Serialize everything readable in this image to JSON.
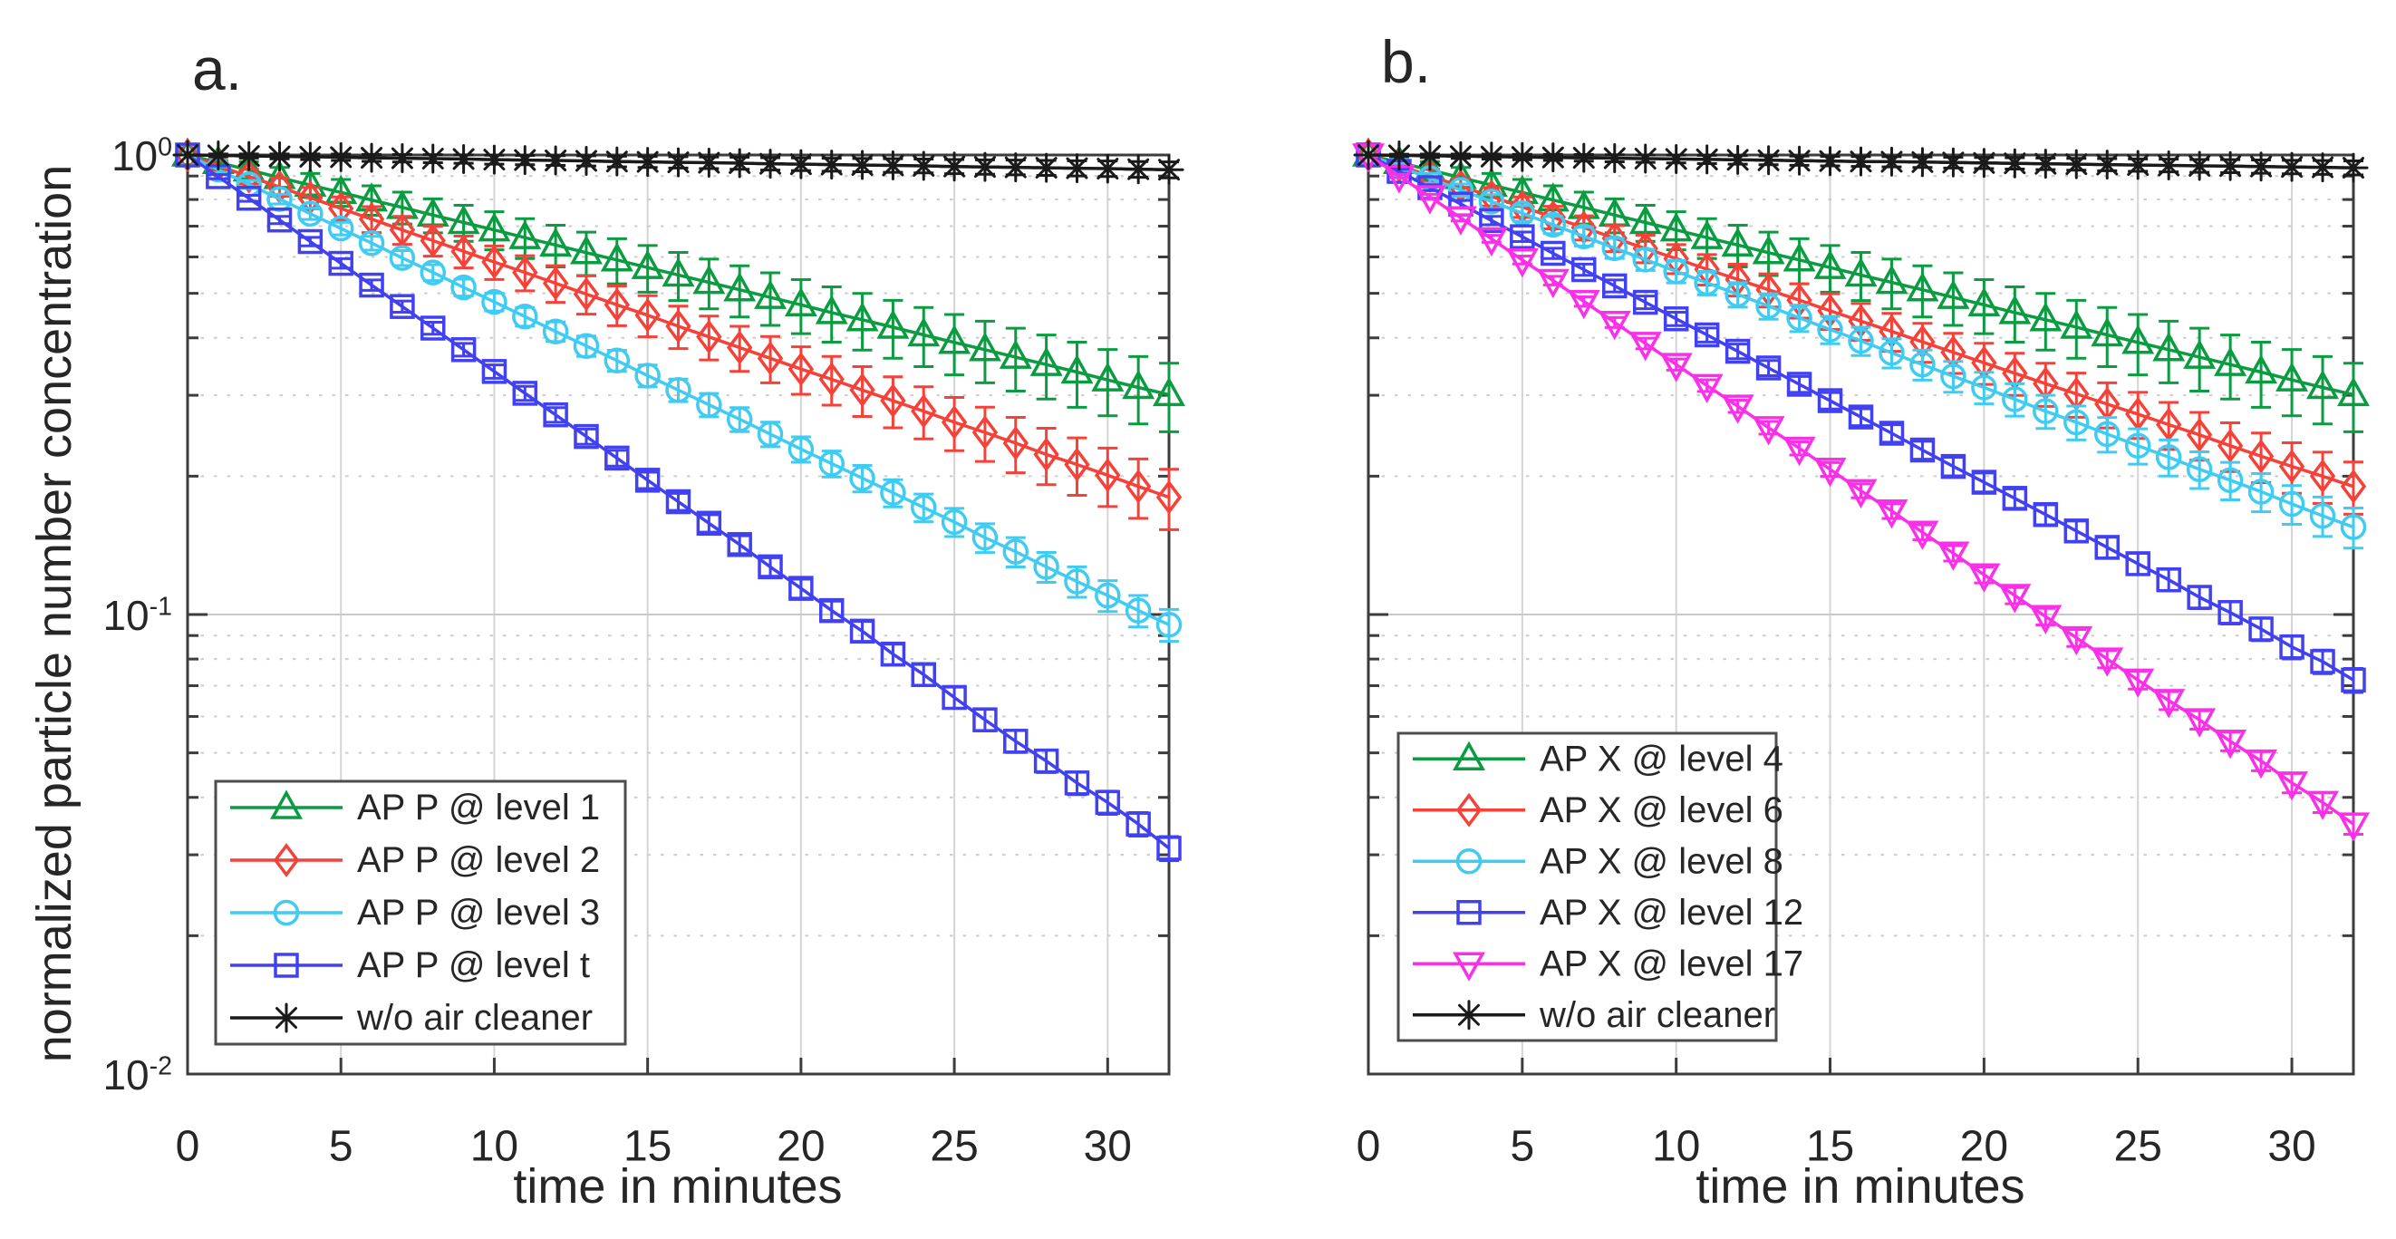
{
  "figure": {
    "background": "#ffffff",
    "frame_color": "#3c3c3c",
    "grid_major_color": "#c9c9c9",
    "grid_minor_color": "#cccccc",
    "grid_vertical_color": "#d4d4d4"
  },
  "chart_data": [
    {
      "type": "line",
      "panel_label": "a.",
      "xlabel": "time in minutes",
      "ylabel": "normalized particle number concentration",
      "x_axis": {
        "min": 0,
        "max": 32,
        "ticks": [
          0,
          5,
          10,
          15,
          20,
          25,
          30
        ]
      },
      "y_axis": {
        "scale": "log",
        "min": 0.01,
        "max": 1.0,
        "major_gridline": 0.1,
        "minor_gridlines": [
          0.9,
          0.8,
          0.7,
          0.6,
          0.5,
          0.4,
          0.3,
          0.2,
          0.09,
          0.08,
          0.07,
          0.06,
          0.05,
          0.04,
          0.03,
          0.02
        ]
      },
      "y_ticks": [
        {
          "base": "10",
          "exp": "0"
        },
        {
          "base": "10",
          "exp": "-1"
        },
        {
          "base": "10",
          "exp": "-2"
        }
      ],
      "grid": "on",
      "legend_position": "southwest",
      "x": {
        "start": 0,
        "step": 1,
        "count": 33,
        "unit": "minutes"
      },
      "series": [
        {
          "name": "AP P @ level 1",
          "marker": "triangle-up",
          "color": "#0B9B40",
          "err_frac": 0.17,
          "values": [
            1.0,
            0.963,
            0.928,
            0.893,
            0.86,
            0.829,
            0.798,
            0.769,
            0.74,
            0.713,
            0.687,
            0.661,
            0.637,
            0.613,
            0.591,
            0.569,
            0.548,
            0.528,
            0.509,
            0.49,
            0.472,
            0.454,
            0.438,
            0.422,
            0.406,
            0.391,
            0.377,
            0.363,
            0.35,
            0.337,
            0.324,
            0.312,
            0.301
          ]
        },
        {
          "name": "AP P @ level 2",
          "marker": "diamond",
          "color": "#F54138",
          "err_frac": 0.15,
          "values": [
            1.0,
            0.948,
            0.898,
            0.852,
            0.807,
            0.765,
            0.725,
            0.687,
            0.651,
            0.617,
            0.585,
            0.555,
            0.526,
            0.498,
            0.472,
            0.448,
            0.424,
            0.402,
            0.381,
            0.361,
            0.342,
            0.325,
            0.308,
            0.292,
            0.277,
            0.262,
            0.249,
            0.236,
            0.223,
            0.212,
            0.201,
            0.19,
            0.18
          ]
        },
        {
          "name": "AP P @ level 3",
          "marker": "circle",
          "color": "#3FCBF2",
          "err_frac": 0.08,
          "values": [
            1.0,
            0.929,
            0.863,
            0.802,
            0.745,
            0.692,
            0.643,
            0.597,
            0.555,
            0.515,
            0.479,
            0.445,
            0.413,
            0.384,
            0.357,
            0.331,
            0.308,
            0.286,
            0.266,
            0.247,
            0.229,
            0.213,
            0.198,
            0.184,
            0.171,
            0.159,
            0.147,
            0.137,
            0.127,
            0.118,
            0.11,
            0.102,
            0.095
          ]
        },
        {
          "name": "AP P @ level t",
          "marker": "square",
          "color": "#4141F0",
          "err_frac": 0.06,
          "values": [
            1.0,
            0.897,
            0.805,
            0.722,
            0.648,
            0.581,
            0.521,
            0.468,
            0.42,
            0.377,
            0.338,
            0.303,
            0.272,
            0.244,
            0.219,
            0.196,
            0.176,
            0.158,
            0.142,
            0.127,
            0.114,
            0.102,
            0.092,
            0.082,
            0.074,
            0.066,
            0.059,
            0.053,
            0.048,
            0.043,
            0.039,
            0.035,
            0.031
          ]
        },
        {
          "name": "w/o air cleaner",
          "marker": "asterisk",
          "color": "#1A1A1A",
          "err_frac": 0.04,
          "values": [
            1.0,
            0.998,
            0.995,
            0.993,
            0.991,
            0.989,
            0.986,
            0.984,
            0.982,
            0.98,
            0.977,
            0.975,
            0.973,
            0.971,
            0.968,
            0.966,
            0.964,
            0.962,
            0.96,
            0.957,
            0.955,
            0.953,
            0.951,
            0.949,
            0.947,
            0.944,
            0.942,
            0.94,
            0.938,
            0.936,
            0.934,
            0.931,
            0.929
          ]
        }
      ]
    },
    {
      "type": "line",
      "panel_label": "b.",
      "xlabel": "time in minutes",
      "ylabel": "",
      "x_axis": {
        "min": 0,
        "max": 32,
        "ticks": [
          0,
          5,
          10,
          15,
          20,
          25,
          30
        ]
      },
      "y_axis": {
        "scale": "log",
        "min": 0.01,
        "max": 1.0,
        "major_gridline": 0.1,
        "minor_gridlines": [
          0.9,
          0.8,
          0.7,
          0.6,
          0.5,
          0.4,
          0.3,
          0.2,
          0.09,
          0.08,
          0.07,
          0.06,
          0.05,
          0.04,
          0.03,
          0.02
        ]
      },
      "y_ticks": [],
      "grid": "on",
      "legend_position": "southwest",
      "x": {
        "start": 0,
        "step": 1,
        "count": 33,
        "unit": "minutes"
      },
      "series": [
        {
          "name": "AP X @ level 4",
          "marker": "triangle-up",
          "color": "#0B9B40",
          "err_frac": 0.17,
          "values": [
            1.0,
            0.963,
            0.928,
            0.893,
            0.86,
            0.829,
            0.798,
            0.769,
            0.74,
            0.713,
            0.687,
            0.661,
            0.637,
            0.613,
            0.591,
            0.569,
            0.548,
            0.528,
            0.509,
            0.49,
            0.472,
            0.454,
            0.438,
            0.422,
            0.406,
            0.391,
            0.377,
            0.363,
            0.35,
            0.337,
            0.324,
            0.312,
            0.301
          ]
        },
        {
          "name": "AP X @ level 6",
          "marker": "diamond",
          "color": "#F54138",
          "err_frac": 0.13,
          "values": [
            1.0,
            0.949,
            0.901,
            0.855,
            0.812,
            0.771,
            0.732,
            0.695,
            0.659,
            0.626,
            0.595,
            0.564,
            0.536,
            0.509,
            0.483,
            0.458,
            0.435,
            0.413,
            0.392,
            0.372,
            0.353,
            0.335,
            0.318,
            0.302,
            0.287,
            0.273,
            0.259,
            0.246,
            0.233,
            0.221,
            0.21,
            0.2,
            0.19
          ]
        },
        {
          "name": "AP X @ level 8",
          "marker": "circle",
          "color": "#3FCBF2",
          "err_frac": 0.1,
          "values": [
            1.0,
            0.943,
            0.89,
            0.839,
            0.792,
            0.747,
            0.705,
            0.665,
            0.627,
            0.592,
            0.558,
            0.527,
            0.497,
            0.469,
            0.442,
            0.417,
            0.394,
            0.371,
            0.35,
            0.33,
            0.312,
            0.294,
            0.277,
            0.262,
            0.247,
            0.233,
            0.22,
            0.207,
            0.196,
            0.185,
            0.174,
            0.164,
            0.155
          ]
        },
        {
          "name": "AP X @ level 12",
          "marker": "square",
          "color": "#4141F0",
          "err_frac": 0.06,
          "values": [
            1.0,
            0.921,
            0.849,
            0.782,
            0.72,
            0.664,
            0.611,
            0.563,
            0.519,
            0.478,
            0.44,
            0.406,
            0.374,
            0.344,
            0.317,
            0.292,
            0.269,
            0.248,
            0.228,
            0.21,
            0.194,
            0.179,
            0.165,
            0.152,
            0.14,
            0.129,
            0.119,
            0.109,
            0.101,
            0.093,
            0.085,
            0.079,
            0.072
          ]
        },
        {
          "name": "AP X @ level 17",
          "marker": "triangle-down",
          "color": "#FA30E8",
          "err_frac": 0.05,
          "values": [
            1.0,
            0.9,
            0.811,
            0.73,
            0.657,
            0.591,
            0.533,
            0.48,
            0.432,
            0.389,
            0.35,
            0.315,
            0.284,
            0.255,
            0.23,
            0.207,
            0.186,
            0.168,
            0.151,
            0.136,
            0.122,
            0.11,
            0.099,
            0.089,
            0.08,
            0.072,
            0.065,
            0.059,
            0.053,
            0.048,
            0.043,
            0.039,
            0.035
          ]
        },
        {
          "name": "w/o air cleaner",
          "marker": "asterisk",
          "color": "#1A1A1A",
          "err_frac": 0.035,
          "values": [
            1.0,
            0.998,
            0.996,
            0.994,
            0.992,
            0.99,
            0.988,
            0.986,
            0.984,
            0.982,
            0.98,
            0.978,
            0.976,
            0.974,
            0.972,
            0.97,
            0.968,
            0.967,
            0.965,
            0.963,
            0.961,
            0.959,
            0.957,
            0.955,
            0.953,
            0.951,
            0.949,
            0.947,
            0.946,
            0.944,
            0.942,
            0.94,
            0.938
          ]
        }
      ]
    }
  ]
}
